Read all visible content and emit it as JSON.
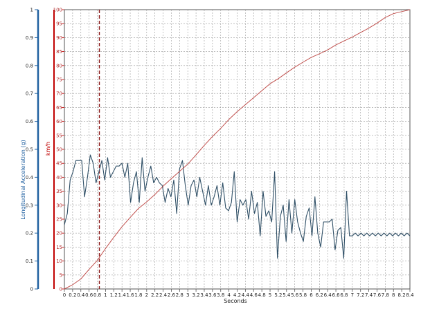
{
  "chart_data": {
    "type": "line",
    "title": "",
    "xlabel": "Seconds",
    "ylabel_left": "Longitudinal Acceleration (g)",
    "ylabel_right": "km/h",
    "xlim": [
      0,
      8.4
    ],
    "ylim_left": [
      0,
      1
    ],
    "ylim_right": [
      0,
      100
    ],
    "x_ticks": [
      "0",
      "0.2",
      "0.4",
      "0.6",
      "0.8",
      "1",
      "1.2",
      "1.4",
      "1.6",
      "1.8",
      "2",
      "2.2",
      "2.4",
      "2.6",
      "2.8",
      "3",
      "3.2",
      "3.4",
      "3.6",
      "3.8",
      "4",
      "4.2",
      "4.4",
      "4.6",
      "4.8",
      "5",
      "5.2",
      "5.4",
      "5.6",
      "5.8",
      "6",
      "6.2",
      "6.4",
      "6.6",
      "6.8",
      "7",
      "7.2",
      "7.4",
      "7.6",
      "7.8",
      "8",
      "8.2",
      "8.4"
    ],
    "y_left_ticks": [
      "0",
      "0.1",
      "0.2",
      "0.3",
      "0.4",
      "0.5",
      "0.6",
      "0.7",
      "0.8",
      "0.9",
      "1"
    ],
    "y_right_ticks": [
      "0",
      "5",
      "10",
      "15",
      "20",
      "25",
      "30",
      "35",
      "40",
      "45",
      "50",
      "55",
      "60",
      "65",
      "70",
      "75",
      "80",
      "85",
      "90",
      "95",
      "100"
    ],
    "grid": true,
    "legend": "none",
    "marker_x": 0.85,
    "colors": {
      "acceleration": "#2f4f66",
      "speed": "#c0504d",
      "left_axis": "#2060a0",
      "right_axis": "#c00000",
      "grid": "#9a9a9a",
      "marker": "#8b1a1a"
    },
    "series": [
      {
        "axis": "left",
        "x": [
          0,
          0.07,
          0.14,
          0.21,
          0.28,
          0.35,
          0.42,
          0.49,
          0.56,
          0.63,
          0.7,
          0.77,
          0.84,
          0.91,
          0.98,
          1.05,
          1.12,
          1.19,
          1.26,
          1.33,
          1.4,
          1.47,
          1.54,
          1.61,
          1.68,
          1.75,
          1.82,
          1.89,
          1.96,
          2.03,
          2.1,
          2.17,
          2.24,
          2.31,
          2.38,
          2.45,
          2.52,
          2.59,
          2.66,
          2.73,
          2.8,
          2.87,
          2.94,
          3.01,
          3.08,
          3.15,
          3.22,
          3.29,
          3.36,
          3.43,
          3.5,
          3.57,
          3.64,
          3.71,
          3.78,
          3.85,
          3.92,
          3.99,
          4.06,
          4.13,
          4.2,
          4.27,
          4.34,
          4.41,
          4.48,
          4.55,
          4.62,
          4.69,
          4.76,
          4.83,
          4.9,
          4.97,
          5.04,
          5.11,
          5.18,
          5.25,
          5.32,
          5.39,
          5.46,
          5.53,
          5.6,
          5.67,
          5.74,
          5.81,
          5.88,
          5.95,
          6.02,
          6.09,
          6.16,
          6.23,
          6.3,
          6.37,
          6.44,
          6.51,
          6.58,
          6.65,
          6.72,
          6.79,
          6.86,
          6.93,
          7.0,
          7.07,
          7.14,
          7.21,
          7.28,
          7.35,
          7.42,
          7.49,
          7.56,
          7.63,
          7.7,
          7.77,
          7.84,
          7.91,
          7.98,
          8.05,
          8.12,
          8.19,
          8.26,
          8.33,
          8.4
        ],
        "values": [
          0.23,
          0.27,
          0.39,
          0.42,
          0.46,
          0.46,
          0.46,
          0.33,
          0.4,
          0.48,
          0.45,
          0.38,
          0.42,
          0.46,
          0.39,
          0.47,
          0.4,
          0.42,
          0.44,
          0.44,
          0.45,
          0.4,
          0.45,
          0.31,
          0.38,
          0.42,
          0.31,
          0.47,
          0.35,
          0.4,
          0.44,
          0.38,
          0.4,
          0.38,
          0.37,
          0.31,
          0.36,
          0.33,
          0.39,
          0.27,
          0.43,
          0.46,
          0.37,
          0.3,
          0.37,
          0.39,
          0.33,
          0.4,
          0.35,
          0.3,
          0.37,
          0.3,
          0.33,
          0.37,
          0.3,
          0.38,
          0.29,
          0.28,
          0.31,
          0.42,
          0.24,
          0.32,
          0.3,
          0.32,
          0.25,
          0.35,
          0.27,
          0.31,
          0.19,
          0.35,
          0.26,
          0.28,
          0.24,
          0.42,
          0.11,
          0.26,
          0.3,
          0.17,
          0.32,
          0.2,
          0.32,
          0.24,
          0.2,
          0.17,
          0.26,
          0.29,
          0.19,
          0.33,
          0.2,
          0.15,
          0.24,
          0.24,
          0.24,
          0.25,
          0.14,
          0.21,
          0.22,
          0.11,
          0.35,
          0.19,
          0.19,
          0.2,
          0.19,
          0.2,
          0.19,
          0.2,
          0.19,
          0.2,
          0.19,
          0.2,
          0.19,
          0.2,
          0.19,
          0.2,
          0.19,
          0.2,
          0.19,
          0.2,
          0.19,
          0.2,
          0.19
        ]
      },
      {
        "axis": "right",
        "x": [
          0,
          0.2,
          0.4,
          0.6,
          0.8,
          1.0,
          1.2,
          1.4,
          1.6,
          1.8,
          2.0,
          2.2,
          2.4,
          2.6,
          2.8,
          3.0,
          3.2,
          3.4,
          3.6,
          3.8,
          4.0,
          4.2,
          4.4,
          4.6,
          4.8,
          5.0,
          5.2,
          5.4,
          5.6,
          5.8,
          6.0,
          6.2,
          6.4,
          6.6,
          6.8,
          7.0,
          7.2,
          7.4,
          7.6,
          7.8,
          8.0,
          8.2,
          8.4
        ],
        "values": [
          0,
          1.5,
          3.6,
          7.0,
          10.2,
          14.5,
          18.5,
          22.3,
          25.6,
          28.8,
          31.2,
          33.8,
          36.8,
          39.5,
          42.1,
          44.7,
          48.0,
          51.4,
          54.6,
          57.5,
          60.7,
          63.5,
          66.0,
          68.5,
          71.0,
          73.5,
          75.3,
          77.4,
          79.4,
          81.2,
          82.9,
          84.2,
          85.6,
          87.4,
          88.8,
          90.2,
          91.8,
          93.4,
          95.2,
          97.2,
          98.6,
          99.3,
          100
        ]
      }
    ]
  }
}
